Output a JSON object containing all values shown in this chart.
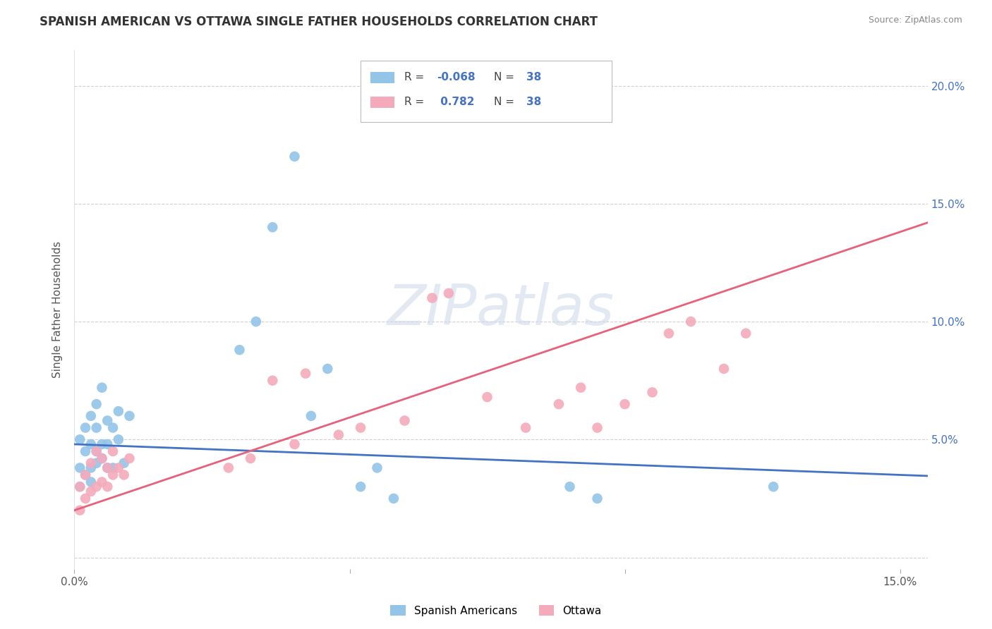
{
  "title": "SPANISH AMERICAN VS OTTAWA SINGLE FATHER HOUSEHOLDS CORRELATION CHART",
  "source": "Source: ZipAtlas.com",
  "ylabel": "Single Father Households",
  "xlim": [
    0.0,
    0.155
  ],
  "ylim": [
    -0.005,
    0.215
  ],
  "ytick_positions": [
    0.0,
    0.05,
    0.1,
    0.15,
    0.2
  ],
  "right_yticklabels": [
    "",
    "5.0%",
    "10.0%",
    "15.0%",
    "20.0%"
  ],
  "xtick_positions": [
    0.0,
    0.05,
    0.1,
    0.15
  ],
  "blue_color": "#92C5E8",
  "pink_color": "#F4AABB",
  "blue_line_color": "#4472C4",
  "pink_line_color": "#E8607A",
  "watermark": "ZIPatlas",
  "R_blue": -0.068,
  "N_blue": 38,
  "R_pink": 0.782,
  "N_pink": 38,
  "blue_x": [
    0.001,
    0.001,
    0.001,
    0.002,
    0.002,
    0.002,
    0.003,
    0.003,
    0.003,
    0.003,
    0.004,
    0.004,
    0.004,
    0.004,
    0.005,
    0.005,
    0.005,
    0.006,
    0.006,
    0.006,
    0.007,
    0.007,
    0.008,
    0.008,
    0.009,
    0.01,
    0.03,
    0.033,
    0.036,
    0.04,
    0.043,
    0.046,
    0.052,
    0.055,
    0.058,
    0.09,
    0.095,
    0.127
  ],
  "blue_y": [
    0.03,
    0.038,
    0.05,
    0.035,
    0.045,
    0.055,
    0.032,
    0.038,
    0.048,
    0.06,
    0.04,
    0.045,
    0.055,
    0.065,
    0.042,
    0.048,
    0.072,
    0.038,
    0.048,
    0.058,
    0.038,
    0.055,
    0.05,
    0.062,
    0.04,
    0.06,
    0.088,
    0.1,
    0.14,
    0.17,
    0.06,
    0.08,
    0.03,
    0.038,
    0.025,
    0.03,
    0.025,
    0.03
  ],
  "pink_x": [
    0.001,
    0.001,
    0.002,
    0.002,
    0.003,
    0.003,
    0.004,
    0.004,
    0.005,
    0.005,
    0.006,
    0.006,
    0.007,
    0.007,
    0.008,
    0.009,
    0.01,
    0.028,
    0.032,
    0.036,
    0.04,
    0.042,
    0.048,
    0.052,
    0.06,
    0.065,
    0.068,
    0.075,
    0.082,
    0.088,
    0.092,
    0.095,
    0.1,
    0.105,
    0.108,
    0.112,
    0.118,
    0.122
  ],
  "pink_y": [
    0.02,
    0.03,
    0.025,
    0.035,
    0.028,
    0.04,
    0.03,
    0.045,
    0.032,
    0.042,
    0.03,
    0.038,
    0.035,
    0.045,
    0.038,
    0.035,
    0.042,
    0.038,
    0.042,
    0.075,
    0.048,
    0.078,
    0.052,
    0.055,
    0.058,
    0.11,
    0.112,
    0.068,
    0.055,
    0.065,
    0.072,
    0.055,
    0.065,
    0.07,
    0.095,
    0.1,
    0.08,
    0.095
  ]
}
